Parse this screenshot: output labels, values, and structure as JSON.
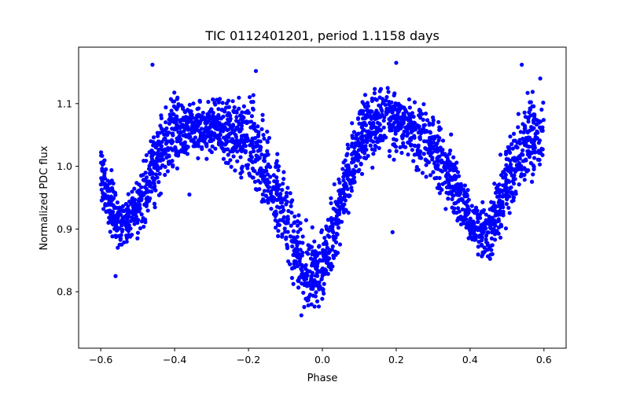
{
  "chart_data": {
    "type": "scatter",
    "title": "TIC 0112401201, period 1.1158 days",
    "xlabel": "Phase",
    "ylabel": "Normalized PDC flux",
    "xlim": [
      -0.66,
      0.66
    ],
    "ylim": [
      0.71,
      1.19
    ],
    "xticks": [
      -0.6,
      -0.4,
      -0.2,
      0.0,
      0.2,
      0.4,
      0.6
    ],
    "xtick_labels": [
      "−0.6",
      "−0.4",
      "−0.2",
      "0.0",
      "0.2",
      "0.4",
      "0.6"
    ],
    "yticks": [
      0.8,
      0.9,
      1.0,
      1.1
    ],
    "ytick_labels": [
      "0.8",
      "0.9",
      "1.0",
      "1.1"
    ],
    "grid": false,
    "series": [
      {
        "name": "flux",
        "color": "#0000ff",
        "envelope": {
          "phase": [
            -0.6,
            -0.55,
            -0.5,
            -0.45,
            -0.4,
            -0.35,
            -0.3,
            -0.25,
            -0.2,
            -0.15,
            -0.1,
            -0.05,
            0.0,
            0.05,
            0.1,
            0.15,
            0.2,
            0.25,
            0.3,
            0.35,
            0.4,
            0.45,
            0.5,
            0.55,
            0.6
          ],
          "upper": [
            1.06,
            0.97,
            0.99,
            1.1,
            1.14,
            1.12,
            1.12,
            1.13,
            1.14,
            1.09,
            1.01,
            0.93,
            0.91,
            1.02,
            1.13,
            1.14,
            1.15,
            1.12,
            1.11,
            1.07,
            0.96,
            0.95,
            1.08,
            1.14,
            1.13
          ],
          "lower": [
            0.92,
            0.83,
            0.87,
            0.92,
            0.97,
            1.0,
            1.0,
            0.98,
            0.94,
            0.89,
            0.83,
            0.73,
            0.75,
            0.87,
            0.96,
            1.0,
            1.0,
            0.98,
            0.95,
            0.9,
            0.87,
            0.83,
            0.88,
            0.93,
            0.98
          ]
        },
        "outliers": [
          {
            "x": -0.46,
            "y": 1.162
          },
          {
            "x": 0.2,
            "y": 1.165
          },
          {
            "x": 0.54,
            "y": 1.162
          },
          {
            "x": -0.18,
            "y": 1.152
          },
          {
            "x": 0.19,
            "y": 0.895
          },
          {
            "x": -0.36,
            "y": 0.955
          },
          {
            "x": -0.56,
            "y": 0.825
          },
          {
            "x": 0.59,
            "y": 1.14
          }
        ]
      }
    ]
  }
}
